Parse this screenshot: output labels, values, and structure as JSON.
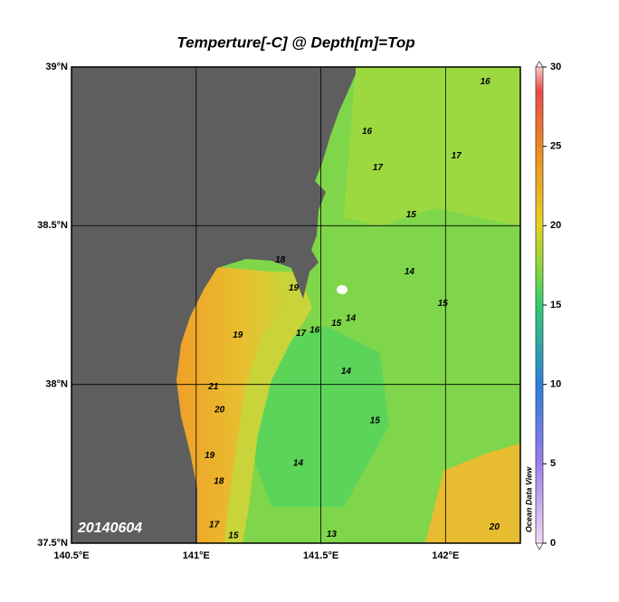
{
  "title": "Temperture[-C] @ Depth[m]=Top",
  "date_label": "20140604",
  "watermark": "Ocean Data View",
  "xlim": [
    140.5,
    142.3
  ],
  "ylim": [
    37.5,
    39
  ],
  "lon_ticks": [
    {
      "value": 140.5,
      "label": "140.5°E"
    },
    {
      "value": 141,
      "label": "141°E"
    },
    {
      "value": 141.5,
      "label": "141.5°E"
    },
    {
      "value": 142,
      "label": "142°E"
    }
  ],
  "lat_ticks": [
    {
      "value": 37.5,
      "label": "37.5°N"
    },
    {
      "value": 38,
      "label": "38°N"
    },
    {
      "value": 38.5,
      "label": "38.5°N"
    },
    {
      "value": 39,
      "label": "39°N"
    }
  ],
  "grid": true,
  "colorbar": {
    "lim": [
      0,
      30
    ],
    "ticks": [
      0,
      5,
      10,
      15,
      20,
      25,
      30
    ]
  },
  "contour_labels": [
    {
      "value": 21,
      "lon": 141.069,
      "lat": 37.993
    },
    {
      "value": 20,
      "lon": 141.094,
      "lat": 37.919
    },
    {
      "value": 19,
      "lon": 141.167,
      "lat": 38.155
    },
    {
      "value": 19,
      "lon": 141.391,
      "lat": 38.303
    },
    {
      "value": 18,
      "lon": 141.337,
      "lat": 38.392
    },
    {
      "value": 17,
      "lon": 141.42,
      "lat": 38.161
    },
    {
      "value": 16,
      "lon": 141.475,
      "lat": 38.17
    },
    {
      "value": 15,
      "lon": 141.562,
      "lat": 38.192
    },
    {
      "value": 14,
      "lon": 141.62,
      "lat": 38.207
    },
    {
      "value": 14,
      "lon": 141.601,
      "lat": 38.041
    },
    {
      "value": 15,
      "lon": 141.717,
      "lat": 37.885
    },
    {
      "value": 14,
      "lon": 141.409,
      "lat": 37.751
    },
    {
      "value": 13,
      "lon": 141.543,
      "lat": 37.528
    },
    {
      "value": 16,
      "lon": 141.685,
      "lat": 38.796
    },
    {
      "value": 17,
      "lon": 141.728,
      "lat": 38.682
    },
    {
      "value": 15,
      "lon": 141.862,
      "lat": 38.534
    },
    {
      "value": 14,
      "lon": 141.855,
      "lat": 38.355
    },
    {
      "value": 15,
      "lon": 141.989,
      "lat": 38.255
    },
    {
      "value": 17,
      "lon": 142.043,
      "lat": 38.719
    },
    {
      "value": 16,
      "lon": 142.159,
      "lat": 38.953
    },
    {
      "value": 18,
      "lon": 141.091,
      "lat": 37.694
    },
    {
      "value": 17,
      "lon": 141.072,
      "lat": 37.557
    },
    {
      "value": 20,
      "lon": 142.196,
      "lat": 37.551
    },
    {
      "value": 19,
      "lon": 141.054,
      "lat": 37.776
    },
    {
      "value": 15,
      "lon": 141.149,
      "lat": 37.523
    }
  ]
}
